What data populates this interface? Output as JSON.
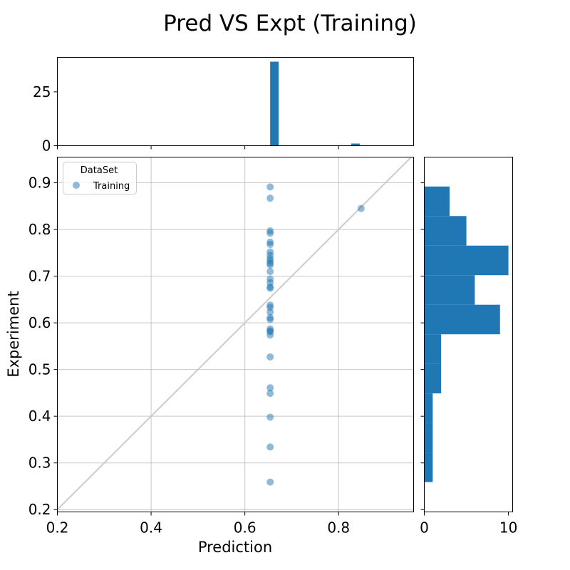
{
  "chart_data": {
    "title": "Pred VS Expt (Training)",
    "colors": {
      "points": "#1f77b4",
      "bars": "#1f77b4",
      "diagonal": "#cccccc",
      "grid": "#b0b0b0"
    },
    "scatter": {
      "type": "scatter",
      "xlabel": "Prediction",
      "ylabel": "Experiment",
      "xlim": [
        0.2,
        0.96
      ],
      "ylim": [
        0.195,
        0.955
      ],
      "xticks": [
        0.2,
        0.4,
        0.6,
        0.8
      ],
      "yticks": [
        0.2,
        0.3,
        0.4,
        0.5,
        0.6,
        0.7,
        0.8,
        0.9
      ],
      "xtick_labels": [
        "0.2",
        "0.4",
        "0.6",
        "0.8"
      ],
      "ytick_labels": [
        "0.2",
        "0.3",
        "0.4",
        "0.5",
        "0.6",
        "0.7",
        "0.8",
        "0.9"
      ],
      "grid": true,
      "diagonal": true,
      "legend": {
        "title": "DataSet",
        "placement": "top-left",
        "entries": [
          "Training"
        ]
      },
      "series": [
        {
          "name": "Training",
          "points": [
            {
              "x": 0.654,
              "y": 0.891
            },
            {
              "x": 0.654,
              "y": 0.867
            },
            {
              "x": 0.654,
              "y": 0.797
            },
            {
              "x": 0.654,
              "y": 0.792
            },
            {
              "x": 0.654,
              "y": 0.773
            },
            {
              "x": 0.654,
              "y": 0.768
            },
            {
              "x": 0.654,
              "y": 0.752
            },
            {
              "x": 0.654,
              "y": 0.745
            },
            {
              "x": 0.654,
              "y": 0.738
            },
            {
              "x": 0.654,
              "y": 0.733
            },
            {
              "x": 0.654,
              "y": 0.728
            },
            {
              "x": 0.654,
              "y": 0.724
            },
            {
              "x": 0.654,
              "y": 0.71
            },
            {
              "x": 0.654,
              "y": 0.694
            },
            {
              "x": 0.654,
              "y": 0.686
            },
            {
              "x": 0.654,
              "y": 0.677
            },
            {
              "x": 0.654,
              "y": 0.674
            },
            {
              "x": 0.654,
              "y": 0.638
            },
            {
              "x": 0.654,
              "y": 0.633
            },
            {
              "x": 0.654,
              "y": 0.623
            },
            {
              "x": 0.654,
              "y": 0.611
            },
            {
              "x": 0.654,
              "y": 0.607
            },
            {
              "x": 0.654,
              "y": 0.587
            },
            {
              "x": 0.654,
              "y": 0.583
            },
            {
              "x": 0.654,
              "y": 0.581
            },
            {
              "x": 0.654,
              "y": 0.574
            },
            {
              "x": 0.654,
              "y": 0.527
            },
            {
              "x": 0.654,
              "y": 0.461
            },
            {
              "x": 0.654,
              "y": 0.449
            },
            {
              "x": 0.654,
              "y": 0.398
            },
            {
              "x": 0.654,
              "y": 0.334
            },
            {
              "x": 0.654,
              "y": 0.259
            },
            {
              "x": 0.848,
              "y": 0.845
            }
          ]
        }
      ]
    },
    "top_histogram": {
      "type": "bar",
      "xlim": [
        0.2,
        0.96
      ],
      "ylim": [
        0,
        41
      ],
      "yticks": [
        0,
        25
      ],
      "ytick_labels": [
        "0",
        "25"
      ],
      "bins": [
        {
          "x0": 0.654,
          "x1": 0.672,
          "count": 39
        },
        {
          "x0": 0.827,
          "x1": 0.845,
          "count": 1
        }
      ]
    },
    "right_histogram": {
      "type": "bar",
      "orientation": "horizontal",
      "xlim": [
        0,
        10.5
      ],
      "xticks": [
        0,
        10
      ],
      "xtick_labels": [
        "0",
        "10"
      ],
      "ylim": [
        0.195,
        0.955
      ],
      "bins": [
        {
          "y0": 0.259,
          "y1": 0.3223,
          "count": 1
        },
        {
          "y0": 0.3223,
          "y1": 0.3856,
          "count": 1
        },
        {
          "y0": 0.3856,
          "y1": 0.4489,
          "count": 1
        },
        {
          "y0": 0.4489,
          "y1": 0.5122,
          "count": 2
        },
        {
          "y0": 0.5122,
          "y1": 0.5755,
          "count": 2
        },
        {
          "y0": 0.5755,
          "y1": 0.6388,
          "count": 9
        },
        {
          "y0": 0.6388,
          "y1": 0.7021,
          "count": 6
        },
        {
          "y0": 0.7021,
          "y1": 0.7654,
          "count": 10
        },
        {
          "y0": 0.7654,
          "y1": 0.8287,
          "count": 5
        },
        {
          "y0": 0.8287,
          "y1": 0.892,
          "count": 3
        }
      ]
    }
  }
}
